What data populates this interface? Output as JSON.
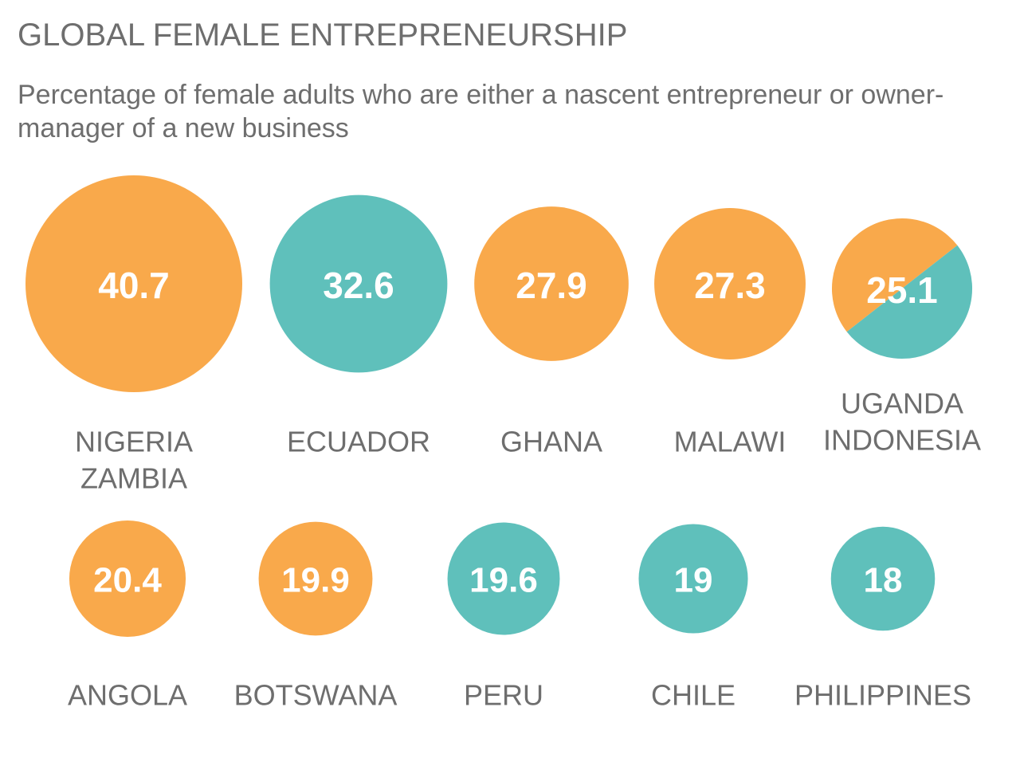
{
  "chart_data": {
    "type": "bubble",
    "title": "GLOBAL FEMALE ENTREPRENEURSHIP",
    "subtitle": "Percentage of female adults who are either a nascent entrepreneur or owner-manager of a new business",
    "colors": {
      "africa": "#f9a94b",
      "other": "#5fc0bb"
    },
    "items": [
      {
        "label": "40.7",
        "value": 40.7,
        "countries": [
          "NIGERIA",
          "ZAMBIA"
        ],
        "colors": [
          "africa"
        ]
      },
      {
        "label": "32.6",
        "value": 32.6,
        "countries": [
          "ECUADOR"
        ],
        "colors": [
          "other"
        ]
      },
      {
        "label": "27.9",
        "value": 27.9,
        "countries": [
          "GHANA"
        ],
        "colors": [
          "africa"
        ]
      },
      {
        "label": "27.3",
        "value": 27.3,
        "countries": [
          "MALAWI"
        ],
        "colors": [
          "africa"
        ]
      },
      {
        "label": "25.1",
        "value": 25.1,
        "countries": [
          "UGANDA",
          "INDONESIA"
        ],
        "colors": [
          "africa",
          "other"
        ]
      },
      {
        "label": "20.4",
        "value": 20.4,
        "countries": [
          "ANGOLA"
        ],
        "colors": [
          "africa"
        ]
      },
      {
        "label": "19.9",
        "value": 19.9,
        "countries": [
          "BOTSWANA"
        ],
        "colors": [
          "africa"
        ]
      },
      {
        "label": "19.6",
        "value": 19.6,
        "countries": [
          "PERU"
        ],
        "colors": [
          "other"
        ]
      },
      {
        "label": "19",
        "value": 19,
        "countries": [
          "CHILE"
        ],
        "colors": [
          "other"
        ]
      },
      {
        "label": "18",
        "value": 18,
        "countries": [
          "PHILIPPINES"
        ],
        "colors": [
          "other"
        ]
      }
    ]
  }
}
